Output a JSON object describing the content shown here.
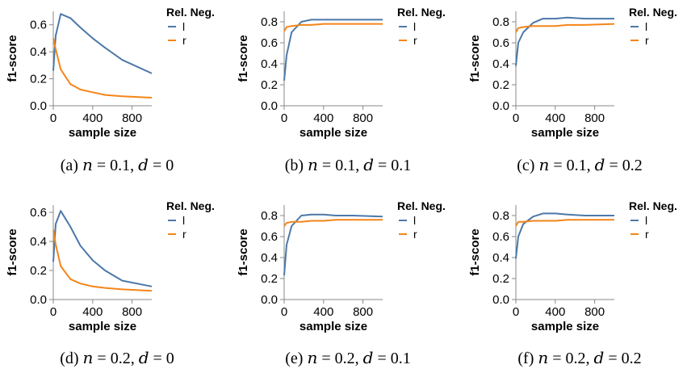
{
  "chart_data": [
    {
      "type": "line",
      "caption": "(a) n = 0.1, d = 0",
      "caption_parts": {
        "label": "(a)",
        "n": "0.1",
        "d": "0"
      },
      "xlabel": "sample size",
      "ylabel": "f1-score",
      "xlim": [
        0,
        1000
      ],
      "ylim": [
        0,
        0.7
      ],
      "xticks": [
        0,
        400,
        800
      ],
      "yticks": [
        0.0,
        0.2,
        0.4,
        0.6
      ],
      "ytick_labels": [
        "0.0",
        "0.2",
        "0.4",
        "0.6"
      ],
      "legend_title": "Rel. Neg.",
      "series": [
        {
          "name": "l",
          "x": [
            0,
            25,
            75,
            175,
            275,
            400,
            525,
            700,
            1000
          ],
          "y": [
            0.26,
            0.52,
            0.68,
            0.65,
            0.58,
            0.5,
            0.43,
            0.34,
            0.24
          ]
        },
        {
          "name": "r",
          "x": [
            0,
            25,
            75,
            175,
            275,
            400,
            525,
            700,
            1000
          ],
          "y": [
            0.5,
            0.42,
            0.27,
            0.16,
            0.12,
            0.1,
            0.08,
            0.07,
            0.06
          ]
        }
      ]
    },
    {
      "type": "line",
      "caption": "(b) n = 0.1, d = 0.1",
      "caption_parts": {
        "label": "(b)",
        "n": "0.1",
        "d": "0.1"
      },
      "xlabel": "sample size",
      "ylabel": "f1-score",
      "xlim": [
        0,
        1000
      ],
      "ylim": [
        0,
        0.9
      ],
      "xticks": [
        0,
        400,
        800
      ],
      "yticks": [
        0.0,
        0.2,
        0.4,
        0.6,
        0.8
      ],
      "ytick_labels": [
        "0.0",
        "0.2",
        "0.4",
        "0.6",
        "0.8"
      ],
      "legend_title": "Rel. Neg.",
      "series": [
        {
          "name": "l",
          "x": [
            0,
            25,
            75,
            175,
            275,
            400,
            525,
            700,
            1000
          ],
          "y": [
            0.24,
            0.48,
            0.7,
            0.8,
            0.82,
            0.82,
            0.82,
            0.82,
            0.82
          ]
        },
        {
          "name": "r",
          "x": [
            0,
            25,
            75,
            175,
            275,
            400,
            525,
            700,
            1000
          ],
          "y": [
            0.71,
            0.75,
            0.76,
            0.77,
            0.77,
            0.78,
            0.78,
            0.78,
            0.78
          ]
        }
      ]
    },
    {
      "type": "line",
      "caption": "(c) n = 0.1, d = 0.2",
      "caption_parts": {
        "label": "(c)",
        "n": "0.1",
        "d": "0.2"
      },
      "xlabel": "sample size",
      "ylabel": "f1-score",
      "xlim": [
        0,
        1000
      ],
      "ylim": [
        0,
        0.9
      ],
      "xticks": [
        0,
        400,
        800
      ],
      "yticks": [
        0.0,
        0.2,
        0.4,
        0.6,
        0.8
      ],
      "ytick_labels": [
        "0.0",
        "0.2",
        "0.4",
        "0.6",
        "0.8"
      ],
      "legend_title": "Rel. Neg.",
      "series": [
        {
          "name": "l",
          "x": [
            0,
            25,
            75,
            175,
            275,
            400,
            525,
            700,
            1000
          ],
          "y": [
            0.38,
            0.6,
            0.7,
            0.79,
            0.83,
            0.83,
            0.84,
            0.83,
            0.83
          ]
        },
        {
          "name": "r",
          "x": [
            0,
            25,
            75,
            175,
            275,
            400,
            525,
            700,
            1000
          ],
          "y": [
            0.7,
            0.74,
            0.75,
            0.76,
            0.76,
            0.76,
            0.77,
            0.77,
            0.78
          ]
        }
      ]
    },
    {
      "type": "line",
      "caption": "(d) n = 0.2, d = 0",
      "caption_parts": {
        "label": "(d)",
        "n": "0.2",
        "d": "0"
      },
      "xlabel": "sample size",
      "ylabel": "f1-score",
      "xlim": [
        0,
        1000
      ],
      "ylim": [
        0,
        0.65
      ],
      "xticks": [
        0,
        400,
        800
      ],
      "yticks": [
        0.0,
        0.2,
        0.4,
        0.6
      ],
      "ytick_labels": [
        "0.0",
        "0.2",
        "0.4",
        "0.6"
      ],
      "legend_title": "Rel. Neg.",
      "series": [
        {
          "name": "l",
          "x": [
            0,
            25,
            75,
            175,
            275,
            400,
            525,
            700,
            1000
          ],
          "y": [
            0.26,
            0.52,
            0.61,
            0.5,
            0.37,
            0.27,
            0.2,
            0.13,
            0.09
          ]
        },
        {
          "name": "r",
          "x": [
            0,
            25,
            75,
            175,
            275,
            400,
            525,
            700,
            1000
          ],
          "y": [
            0.48,
            0.38,
            0.23,
            0.14,
            0.11,
            0.09,
            0.08,
            0.07,
            0.06
          ]
        }
      ]
    },
    {
      "type": "line",
      "caption": "(e) n = 0.2, d = 0.1",
      "caption_parts": {
        "label": "(e)",
        "n": "0.2",
        "d": "0.1"
      },
      "xlabel": "sample size",
      "ylabel": "f1-score",
      "xlim": [
        0,
        1000
      ],
      "ylim": [
        0,
        0.9
      ],
      "xticks": [
        0,
        400,
        800
      ],
      "yticks": [
        0.0,
        0.2,
        0.4,
        0.6,
        0.8
      ],
      "ytick_labels": [
        "0.0",
        "0.2",
        "0.4",
        "0.6",
        "0.8"
      ],
      "legend_title": "Rel. Neg.",
      "series": [
        {
          "name": "l",
          "x": [
            0,
            25,
            75,
            175,
            275,
            400,
            525,
            700,
            1000
          ],
          "y": [
            0.23,
            0.52,
            0.7,
            0.8,
            0.81,
            0.81,
            0.8,
            0.8,
            0.79
          ]
        },
        {
          "name": "r",
          "x": [
            0,
            25,
            75,
            175,
            275,
            400,
            525,
            700,
            1000
          ],
          "y": [
            0.7,
            0.73,
            0.74,
            0.74,
            0.75,
            0.75,
            0.76,
            0.76,
            0.76
          ]
        }
      ]
    },
    {
      "type": "line",
      "caption": "(f) n = 0.2, d = 0.2",
      "caption_parts": {
        "label": "(f)",
        "n": "0.2",
        "d": "0.2"
      },
      "xlabel": "sample size",
      "ylabel": "f1-score",
      "xlim": [
        0,
        1000
      ],
      "ylim": [
        0,
        0.9
      ],
      "xticks": [
        0,
        400,
        800
      ],
      "yticks": [
        0.0,
        0.2,
        0.4,
        0.6,
        0.8
      ],
      "ytick_labels": [
        "0.0",
        "0.2",
        "0.4",
        "0.6",
        "0.8"
      ],
      "legend_title": "Rel. Neg.",
      "series": [
        {
          "name": "l",
          "x": [
            0,
            25,
            75,
            175,
            275,
            400,
            525,
            700,
            1000
          ],
          "y": [
            0.39,
            0.6,
            0.72,
            0.79,
            0.82,
            0.82,
            0.81,
            0.8,
            0.8
          ]
        },
        {
          "name": "r",
          "x": [
            0,
            25,
            75,
            175,
            275,
            400,
            525,
            700,
            1000
          ],
          "y": [
            0.7,
            0.74,
            0.74,
            0.75,
            0.75,
            0.75,
            0.76,
            0.76,
            0.76
          ]
        }
      ]
    }
  ],
  "colors": {
    "l": "#4c78a8",
    "r": "#f58518",
    "axis": "#888888",
    "text": "#000000"
  }
}
